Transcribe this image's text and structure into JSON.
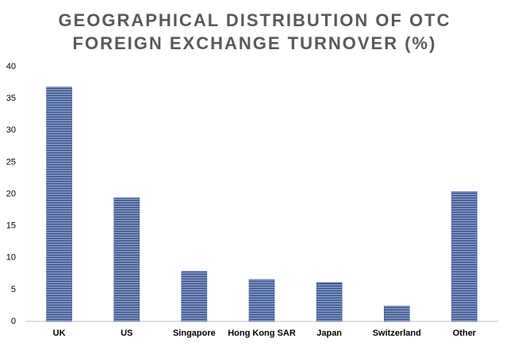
{
  "chart_data": {
    "type": "bar",
    "title": [
      "GEOGRAPHICAL DISTRIBUTION OF OTC",
      "FOREIGN EXCHANGE TURNOVER (%)"
    ],
    "categories": [
      "UK",
      "US",
      "Singapore",
      "Hong Kong SAR",
      "Japan",
      "Switzerland",
      "Other"
    ],
    "values": [
      36.8,
      19.4,
      7.85,
      6.6,
      6.1,
      2.4,
      20.4
    ],
    "color": "#2f4b8a",
    "ylim": [
      0,
      40
    ],
    "yticks": [
      0,
      5,
      10,
      15,
      20,
      25,
      30,
      35,
      40
    ],
    "grid": false
  }
}
